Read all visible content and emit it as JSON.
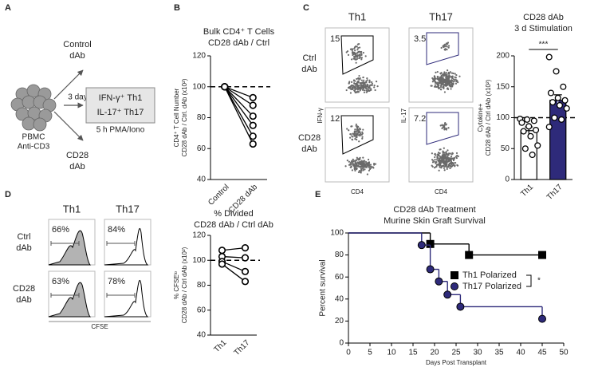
{
  "panel_labels": [
    "A",
    "B",
    "C",
    "D",
    "E"
  ],
  "diagram": {
    "cells": [
      "PBMC",
      "Anti-CD3"
    ],
    "top_arm": [
      "Control",
      "dAb"
    ],
    "bottom_arm": [
      "CD28",
      "dAb"
    ],
    "duration": "3 days",
    "readout": [
      "IFN-γ⁺ Th1",
      "IL-17⁺ Th17"
    ],
    "restim": "5 h PMA/Iono"
  },
  "flow_c": {
    "columns": [
      "Th1",
      "Th17"
    ],
    "rows": [
      [
        "Ctrl",
        "dAb"
      ],
      [
        "CD28",
        "dAb"
      ]
    ],
    "y_axes": [
      "IFN-γ",
      "IL-17"
    ],
    "x_axis": "CD4",
    "gate_percent": [
      [
        "15",
        "3.5"
      ],
      [
        "12",
        "7.2"
      ]
    ]
  },
  "flow_d": {
    "columns": [
      "Th1",
      "Th17"
    ],
    "rows": [
      [
        "Ctrl",
        "dAb"
      ],
      [
        "CD28",
        "dAb"
      ]
    ],
    "x_axis": "CFSE",
    "divided_percent": [
      [
        "66%",
        "84%"
      ],
      [
        "63%",
        "78%"
      ]
    ]
  },
  "chart_data": [
    {
      "type": "line",
      "title": [
        "Bulk CD4⁺ T Cells",
        "CD28 dAb / Ctrl"
      ],
      "ylabel": [
        "CD4⁺ T Cell Number",
        "CD28 dAb / Ctrl. dAb (x10²)"
      ],
      "categories": [
        "Control",
        "CD28 dAb"
      ],
      "series": [
        {
          "color": "#000000",
          "values": [
            100,
            93
          ]
        },
        {
          "color": "#000000",
          "values": [
            100,
            88
          ]
        },
        {
          "color": "#000000",
          "values": [
            100,
            81
          ]
        },
        {
          "color": "#000000",
          "values": [
            100,
            75
          ]
        },
        {
          "color": "#000000",
          "values": [
            100,
            68
          ]
        },
        {
          "color": "#000000",
          "values": [
            100,
            63
          ]
        }
      ],
      "ylim": [
        40,
        120
      ],
      "yticks": [
        40,
        60,
        80,
        100,
        120
      ],
      "reference": 100
    },
    {
      "type": "bar",
      "title": [
        "CD28 dAb",
        "3 d Stimulation"
      ],
      "ylabel": [
        "Cytokine+",
        "CD28 dAb / Ctrl dAb (x10²)"
      ],
      "categories": [
        "Th1",
        "Th17"
      ],
      "values": [
        79,
        128
      ],
      "errors": [
        6,
        9
      ],
      "colors": [
        "#ffffff",
        "#2e2a7a"
      ],
      "points": [
        [
          98,
          97,
          95,
          92,
          86,
          80,
          78,
          70,
          55,
          50,
          40
        ],
        [
          198,
          175,
          150,
          140,
          132,
          128,
          125,
          120,
          115,
          100,
          97,
          85
        ]
      ],
      "ylim": [
        0,
        200
      ],
      "yticks": [
        0,
        50,
        100,
        150,
        200
      ],
      "reference": 100,
      "significance": "***"
    },
    {
      "type": "line",
      "title": [
        "% Divided",
        "CD28 dAb / Ctrl dAb"
      ],
      "ylabel": [
        "% CFSEˡᵒ",
        "CD28 dAb / Ctrl dAb (x10²)"
      ],
      "categories": [
        "Th1",
        "Th17"
      ],
      "series": [
        {
          "color": "#000000",
          "values": [
            108,
            110
          ]
        },
        {
          "color": "#000000",
          "values": [
            103,
            102
          ]
        },
        {
          "color": "#000000",
          "values": [
            99,
            91
          ]
        },
        {
          "color": "#000000",
          "values": [
            97,
            83
          ]
        }
      ],
      "ylim": [
        40,
        120
      ],
      "yticks": [
        40,
        60,
        80,
        100,
        120
      ],
      "reference": 100
    },
    {
      "type": "step",
      "title": [
        "CD28 dAb Treatment",
        "Murine Skin Graft Survival"
      ],
      "ylabel": [
        "Percent survival"
      ],
      "xlabel": "Days Post Transplant",
      "series": [
        {
          "name": "Th1 Polarized",
          "color": "#000000",
          "marker": "square",
          "x": [
            0,
            19,
            28,
            45
          ],
          "values": [
            100,
            90,
            80,
            80
          ]
        },
        {
          "name": "Th17 Polarized",
          "color": "#2e2a7a",
          "marker": "circle",
          "x": [
            0,
            17,
            19,
            21,
            23,
            26,
            45
          ],
          "values": [
            100,
            89,
            67,
            56,
            44,
            33,
            22
          ]
        }
      ],
      "xlim": [
        0,
        50
      ],
      "xticks": [
        0,
        5,
        10,
        15,
        20,
        25,
        30,
        35,
        40,
        45,
        50
      ],
      "ylim": [
        0,
        100
      ],
      "yticks": [
        0,
        20,
        40,
        60,
        80,
        100
      ],
      "significance": "*"
    }
  ]
}
